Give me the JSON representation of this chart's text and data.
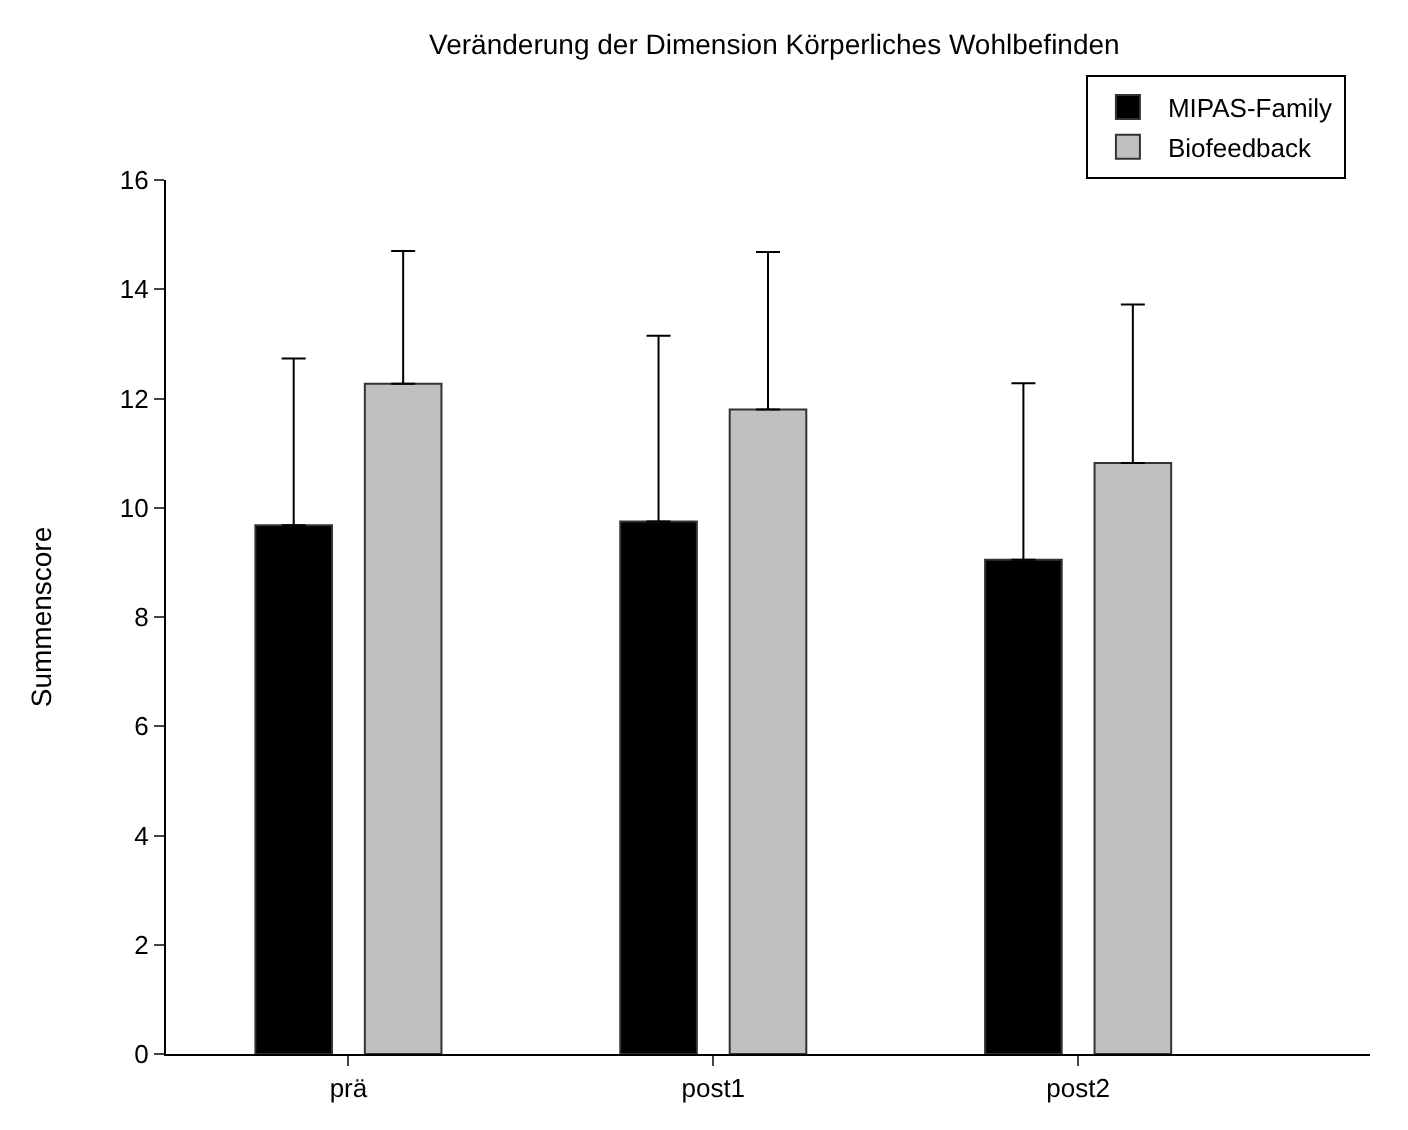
{
  "chart_data": {
    "type": "bar",
    "title": "Veränderung der Dimension Körperliches Wohlbefinden",
    "ylabel": "Summenscore",
    "categories": [
      "prä",
      "post1",
      "post2"
    ],
    "series": [
      {
        "name": "MIPAS-Family",
        "color": "#000000",
        "values": [
          9.68,
          9.75,
          9.05
        ],
        "errors": [
          [
            9.68,
            12.73
          ],
          [
            9.75,
            13.15
          ],
          [
            9.05,
            12.28
          ]
        ]
      },
      {
        "name": "Biofeedback",
        "color": "#c0c0c0",
        "values": [
          12.27,
          11.8,
          10.82
        ],
        "errors": [
          [
            12.27,
            14.7
          ],
          [
            11.8,
            14.68
          ],
          [
            10.82,
            13.72
          ]
        ]
      }
    ],
    "ylim": [
      0,
      16
    ],
    "yticks": [
      0,
      2,
      4,
      6,
      8,
      10,
      12,
      14,
      16
    ],
    "grid": false,
    "legend": "top right"
  }
}
